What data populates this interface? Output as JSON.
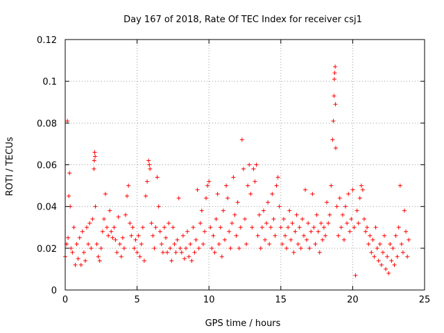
{
  "chart_data": {
    "type": "scatter",
    "title": "Day 167 of 2018, Rate Of TEC Index for receiver csj1",
    "xlabel": "GPS time / hours",
    "ylabel": "ROTI / TECUs",
    "xlim": [
      0,
      25
    ],
    "ylim": [
      0,
      0.12
    ],
    "x_ticks": [
      0,
      5,
      10,
      15,
      20,
      25
    ],
    "x_tick_labels": [
      "0",
      "5",
      "10",
      "15",
      "20",
      "25"
    ],
    "y_ticks": [
      0,
      0.02,
      0.04,
      0.06,
      0.08,
      0.1,
      0.12
    ],
    "y_tick_labels": [
      "0",
      "0.02",
      "0.04",
      "0.06",
      "0.08",
      "0.1",
      "0.12"
    ],
    "grid": true,
    "marker": "+",
    "series": [
      {
        "name": "ROTI",
        "color": "#ff0000",
        "points": [
          [
            0.0,
            0.016
          ],
          [
            0.1,
            0.022
          ],
          [
            0.15,
            0.081
          ],
          [
            0.2,
            0.025
          ],
          [
            0.25,
            0.045
          ],
          [
            0.3,
            0.056
          ],
          [
            0.35,
            0.04
          ],
          [
            0.4,
            0.02
          ],
          [
            0.5,
            0.018
          ],
          [
            0.6,
            0.03
          ],
          [
            0.7,
            0.012
          ],
          [
            0.8,
            0.022
          ],
          [
            0.9,
            0.015
          ],
          [
            1.0,
            0.025
          ],
          [
            1.1,
            0.012
          ],
          [
            1.2,
            0.028
          ],
          [
            1.3,
            0.018
          ],
          [
            1.4,
            0.014
          ],
          [
            1.5,
            0.03
          ],
          [
            1.6,
            0.022
          ],
          [
            1.7,
            0.032
          ],
          [
            1.8,
            0.02
          ],
          [
            1.9,
            0.034
          ],
          [
            2.0,
            0.058
          ],
          [
            2.02,
            0.062
          ],
          [
            2.05,
            0.066
          ],
          [
            2.08,
            0.064
          ],
          [
            2.1,
            0.04
          ],
          [
            2.2,
            0.022
          ],
          [
            2.3,
            0.016
          ],
          [
            2.4,
            0.014
          ],
          [
            2.5,
            0.02
          ],
          [
            2.6,
            0.028
          ],
          [
            2.7,
            0.034
          ],
          [
            2.8,
            0.046
          ],
          [
            2.9,
            0.03
          ],
          [
            3.0,
            0.026
          ],
          [
            3.1,
            0.038
          ],
          [
            3.2,
            0.028
          ],
          [
            3.3,
            0.025
          ],
          [
            3.4,
            0.03
          ],
          [
            3.5,
            0.024
          ],
          [
            3.6,
            0.018
          ],
          [
            3.7,
            0.035
          ],
          [
            3.8,
            0.022
          ],
          [
            3.9,
            0.016
          ],
          [
            4.0,
            0.025
          ],
          [
            4.1,
            0.02
          ],
          [
            4.2,
            0.036
          ],
          [
            4.3,
            0.045
          ],
          [
            4.4,
            0.05
          ],
          [
            4.5,
            0.032
          ],
          [
            4.6,
            0.026
          ],
          [
            4.7,
            0.03
          ],
          [
            4.8,
            0.02
          ],
          [
            4.9,
            0.024
          ],
          [
            5.0,
            0.018
          ],
          [
            5.1,
            0.026
          ],
          [
            5.2,
            0.016
          ],
          [
            5.3,
            0.022
          ],
          [
            5.4,
            0.03
          ],
          [
            5.5,
            0.014
          ],
          [
            5.6,
            0.045
          ],
          [
            5.7,
            0.052
          ],
          [
            5.8,
            0.062
          ],
          [
            5.85,
            0.06
          ],
          [
            5.9,
            0.058
          ],
          [
            6.0,
            0.032
          ],
          [
            6.1,
            0.026
          ],
          [
            6.2,
            0.02
          ],
          [
            6.3,
            0.03
          ],
          [
            6.4,
            0.054
          ],
          [
            6.5,
            0.04
          ],
          [
            6.6,
            0.028
          ],
          [
            6.7,
            0.022
          ],
          [
            6.8,
            0.018
          ],
          [
            6.9,
            0.03
          ],
          [
            7.0,
            0.025
          ],
          [
            7.1,
            0.018
          ],
          [
            7.2,
            0.032
          ],
          [
            7.3,
            0.02
          ],
          [
            7.4,
            0.014
          ],
          [
            7.5,
            0.03
          ],
          [
            7.6,
            0.022
          ],
          [
            7.7,
            0.018
          ],
          [
            7.8,
            0.024
          ],
          [
            7.9,
            0.044
          ],
          [
            8.0,
            0.02
          ],
          [
            8.1,
            0.018
          ],
          [
            8.2,
            0.026
          ],
          [
            8.3,
            0.015
          ],
          [
            8.4,
            0.02
          ],
          [
            8.5,
            0.028
          ],
          [
            8.6,
            0.016
          ],
          [
            8.7,
            0.022
          ],
          [
            8.8,
            0.014
          ],
          [
            8.9,
            0.03
          ],
          [
            9.0,
            0.018
          ],
          [
            9.1,
            0.024
          ],
          [
            9.2,
            0.048
          ],
          [
            9.3,
            0.02
          ],
          [
            9.4,
            0.032
          ],
          [
            9.5,
            0.038
          ],
          [
            9.6,
            0.022
          ],
          [
            9.7,
            0.028
          ],
          [
            9.8,
            0.044
          ],
          [
            9.9,
            0.05
          ],
          [
            10.0,
            0.052
          ],
          [
            10.1,
            0.03
          ],
          [
            10.2,
            0.02
          ],
          [
            10.3,
            0.026
          ],
          [
            10.4,
            0.018
          ],
          [
            10.5,
            0.034
          ],
          [
            10.6,
            0.046
          ],
          [
            10.7,
            0.022
          ],
          [
            10.8,
            0.03
          ],
          [
            10.9,
            0.016
          ],
          [
            11.0,
            0.038
          ],
          [
            11.1,
            0.024
          ],
          [
            11.2,
            0.05
          ],
          [
            11.3,
            0.044
          ],
          [
            11.4,
            0.028
          ],
          [
            11.5,
            0.02
          ],
          [
            11.6,
            0.032
          ],
          [
            11.7,
            0.054
          ],
          [
            11.8,
            0.036
          ],
          [
            11.9,
            0.026
          ],
          [
            12.0,
            0.042
          ],
          [
            12.1,
            0.02
          ],
          [
            12.2,
            0.03
          ],
          [
            12.3,
            0.072
          ],
          [
            12.4,
            0.058
          ],
          [
            12.5,
            0.034
          ],
          [
            12.6,
            0.022
          ],
          [
            12.7,
            0.05
          ],
          [
            12.8,
            0.06
          ],
          [
            12.9,
            0.046
          ],
          [
            13.0,
            0.03
          ],
          [
            13.1,
            0.058
          ],
          [
            13.2,
            0.052
          ],
          [
            13.3,
            0.06
          ],
          [
            13.4,
            0.026
          ],
          [
            13.5,
            0.036
          ],
          [
            13.6,
            0.02
          ],
          [
            13.7,
            0.03
          ],
          [
            13.8,
            0.038
          ],
          [
            13.9,
            0.024
          ],
          [
            14.0,
            0.032
          ],
          [
            14.1,
            0.042
          ],
          [
            14.2,
            0.022
          ],
          [
            14.3,
            0.03
          ],
          [
            14.4,
            0.046
          ],
          [
            14.5,
            0.034
          ],
          [
            14.6,
            0.026
          ],
          [
            14.7,
            0.05
          ],
          [
            14.8,
            0.054
          ],
          [
            14.9,
            0.04
          ],
          [
            15.0,
            0.03
          ],
          [
            15.1,
            0.022
          ],
          [
            15.2,
            0.034
          ],
          [
            15.3,
            0.026
          ],
          [
            15.4,
            0.02
          ],
          [
            15.5,
            0.03
          ],
          [
            15.6,
            0.038
          ],
          [
            15.7,
            0.024
          ],
          [
            15.8,
            0.032
          ],
          [
            15.9,
            0.018
          ],
          [
            16.0,
            0.028
          ],
          [
            16.1,
            0.036
          ],
          [
            16.2,
            0.022
          ],
          [
            16.3,
            0.03
          ],
          [
            16.4,
            0.02
          ],
          [
            16.5,
            0.034
          ],
          [
            16.6,
            0.026
          ],
          [
            16.7,
            0.048
          ],
          [
            16.8,
            0.024
          ],
          [
            16.9,
            0.032
          ],
          [
            17.0,
            0.02
          ],
          [
            17.1,
            0.028
          ],
          [
            17.2,
            0.046
          ],
          [
            17.3,
            0.03
          ],
          [
            17.4,
            0.022
          ],
          [
            17.5,
            0.036
          ],
          [
            17.6,
            0.028
          ],
          [
            17.7,
            0.018
          ],
          [
            17.8,
            0.032
          ],
          [
            17.9,
            0.024
          ],
          [
            18.0,
            0.03
          ],
          [
            18.1,
            0.026
          ],
          [
            18.2,
            0.042
          ],
          [
            18.3,
            0.032
          ],
          [
            18.4,
            0.036
          ],
          [
            18.5,
            0.05
          ],
          [
            18.6,
            0.072
          ],
          [
            18.65,
            0.081
          ],
          [
            18.7,
            0.093
          ],
          [
            18.72,
            0.101
          ],
          [
            18.75,
            0.104
          ],
          [
            18.78,
            0.107
          ],
          [
            18.8,
            0.089
          ],
          [
            18.82,
            0.068
          ],
          [
            18.9,
            0.04
          ],
          [
            19.0,
            0.026
          ],
          [
            19.1,
            0.044
          ],
          [
            19.2,
            0.03
          ],
          [
            19.3,
            0.036
          ],
          [
            19.4,
            0.024
          ],
          [
            19.5,
            0.04
          ],
          [
            19.6,
            0.032
          ],
          [
            19.7,
            0.046
          ],
          [
            19.8,
            0.028
          ],
          [
            19.9,
            0.034
          ],
          [
            20.0,
            0.048
          ],
          [
            20.1,
            0.03
          ],
          [
            20.2,
            0.007
          ],
          [
            20.3,
            0.038
          ],
          [
            20.4,
            0.032
          ],
          [
            20.5,
            0.044
          ],
          [
            20.6,
            0.05
          ],
          [
            20.7,
            0.048
          ],
          [
            20.8,
            0.034
          ],
          [
            20.9,
            0.028
          ],
          [
            21.0,
            0.03
          ],
          [
            21.1,
            0.022
          ],
          [
            21.2,
            0.026
          ],
          [
            21.3,
            0.018
          ],
          [
            21.4,
            0.024
          ],
          [
            21.5,
            0.016
          ],
          [
            21.6,
            0.03
          ],
          [
            21.7,
            0.02
          ],
          [
            21.8,
            0.014
          ],
          [
            21.9,
            0.022
          ],
          [
            22.0,
            0.012
          ],
          [
            22.1,
            0.018
          ],
          [
            22.2,
            0.026
          ],
          [
            22.3,
            0.01
          ],
          [
            22.4,
            0.016
          ],
          [
            22.5,
            0.008
          ],
          [
            22.6,
            0.022
          ],
          [
            22.7,
            0.014
          ],
          [
            22.8,
            0.02
          ],
          [
            22.9,
            0.012
          ],
          [
            23.0,
            0.026
          ],
          [
            23.1,
            0.016
          ],
          [
            23.2,
            0.03
          ],
          [
            23.3,
            0.05
          ],
          [
            23.4,
            0.022
          ],
          [
            23.5,
            0.018
          ],
          [
            23.6,
            0.038
          ],
          [
            23.7,
            0.028
          ],
          [
            23.8,
            0.016
          ],
          [
            23.9,
            0.024
          ]
        ]
      }
    ]
  }
}
